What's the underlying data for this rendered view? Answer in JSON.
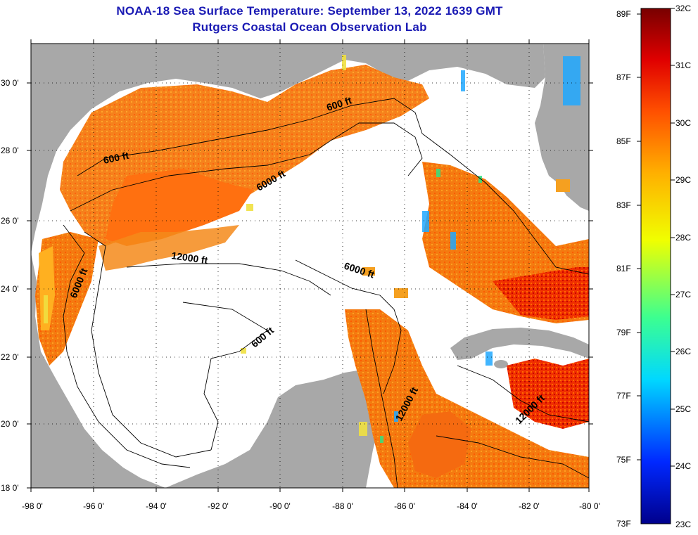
{
  "header": {
    "title": "NOAA-18 Sea Surface Temperature:  September 13, 2022 1639 GMT",
    "subtitle": "Rutgers Coastal Ocean Observation Lab"
  },
  "map": {
    "lat_ticks": [
      "30 0'",
      "28 0'",
      "26 0'",
      "24 0'",
      "22 0'",
      "20 0'",
      "18 0'"
    ],
    "lon_ticks": [
      "-98 0'",
      "-96 0'",
      "-94 0'",
      "-92 0'",
      "-90 0'",
      "-88 0'",
      "-86 0'",
      "-84 0'",
      "-82 0'",
      "-80 0'"
    ],
    "lat_range": [
      18,
      31
    ],
    "lon_range": [
      -98,
      -80
    ],
    "contour_labels": [
      "600 ft",
      "6000 ft",
      "600 ft",
      "6000 ft",
      "12000 ft",
      "6000 ft",
      "600 ft",
      "12000 ft",
      "12000 ft"
    ],
    "colors": {
      "land": "#a8a8a8",
      "cloud": "#ffffff"
    }
  },
  "colorbar": {
    "fahrenheit_labels": [
      "89F",
      "87F",
      "85F",
      "83F",
      "81F",
      "79F",
      "77F",
      "75F",
      "73F"
    ],
    "celsius_labels": [
      "32C",
      "31C",
      "30C",
      "29C",
      "28C",
      "27C",
      "26C",
      "25C",
      "24C",
      "23C"
    ]
  }
}
